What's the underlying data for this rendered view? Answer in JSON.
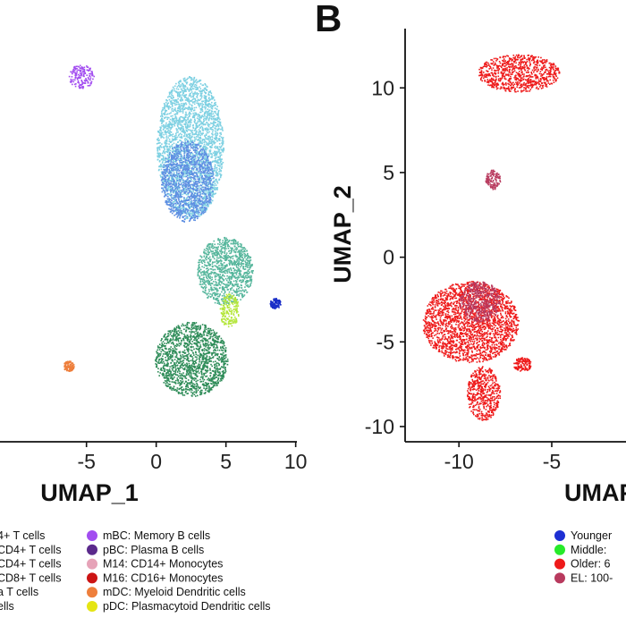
{
  "chart_data": [
    {
      "type": "scatter",
      "panel": "",
      "xlabel": "UMAP_1",
      "ylabel": "",
      "xticks": [
        "-5",
        "0",
        "5",
        "10"
      ],
      "xlim": [
        -11.2,
        10.6
      ],
      "ylim": [
        -10.9,
        13.5
      ],
      "grid": false,
      "legend_position": "bottom",
      "series": [
        {
          "name": "mBC: Memory B cells",
          "color": "#a24df0"
        },
        {
          "name": "pBC: Plasma B cells",
          "color": "#5b2a8c"
        },
        {
          "name": "M14: CD14+ Monocytes",
          "color": "#e6a3b8"
        },
        {
          "name": "M16: CD16+ Monocytes",
          "color": "#cc1414"
        },
        {
          "name": "mDC: Myeloid Dendritic cells",
          "color": "#ee7f3c"
        },
        {
          "name": "pDC: Plasmacytoid Dendritic cells",
          "color": "#e5e513"
        }
      ],
      "partial_legend": [
        "4+ T cells",
        "CD4+ T cells",
        "CD4+ T cells",
        "CD8+ T cells",
        "a T cells",
        "ells"
      ],
      "clusters": [
        {
          "color": "#a24df0",
          "x": -5.4,
          "y": 10.7,
          "rx": 0.9,
          "ry": 0.7
        },
        {
          "color": "#7dd0e2",
          "x": 2.4,
          "y": 6.5,
          "rx": 2.4,
          "ry": 4.2
        },
        {
          "color": "#5f8fe2",
          "x": 2.2,
          "y": 4.5,
          "rx": 1.9,
          "ry": 2.4
        },
        {
          "color": "#56b69c",
          "x": 4.9,
          "y": -0.8,
          "rx": 2.0,
          "ry": 2.0
        },
        {
          "color": "#1a2ec8",
          "x": 8.5,
          "y": -2.7,
          "rx": 0.4,
          "ry": 0.3
        },
        {
          "color": "#b4e63a",
          "x": 5.2,
          "y": -3.1,
          "rx": 0.7,
          "ry": 1.0
        },
        {
          "color": "#2e8c58",
          "x": 2.5,
          "y": -6.0,
          "rx": 2.6,
          "ry": 2.2
        },
        {
          "color": "#ee7f3c",
          "x": -6.3,
          "y": -6.4,
          "rx": 0.4,
          "ry": 0.3
        }
      ]
    },
    {
      "type": "scatter",
      "panel": "B",
      "xlabel": "UMAP_1",
      "ylabel": "UMAP_2",
      "xticks": [
        "-10",
        "-5"
      ],
      "yticks": [
        "10",
        "5",
        "0",
        "-5",
        "-10"
      ],
      "xlim": [
        -12.9,
        -1.0
      ],
      "ylim": [
        -10.9,
        13.5
      ],
      "grid": false,
      "legend_position": "bottom",
      "series": [
        {
          "name": "Younger",
          "label": "Younger",
          "color": "#1d2fd3"
        },
        {
          "name": "Middle",
          "label": "Middle:",
          "color": "#27ea2a"
        },
        {
          "name": "Older",
          "label": "Older: 6",
          "color": "#ee1a1a"
        },
        {
          "name": "EL",
          "label": "EL: 100-",
          "color": "#b83a5e"
        }
      ],
      "clusters": [
        {
          "color": "#ee1a1a",
          "x": -6.8,
          "y": 10.9,
          "rx": 2.2,
          "ry": 1.1
        },
        {
          "color": "#b83a5e",
          "x": -8.2,
          "y": 4.6,
          "rx": 0.4,
          "ry": 0.6
        },
        {
          "color": "#ee1a1a",
          "x": -9.4,
          "y": -3.8,
          "rx": 2.6,
          "ry": 2.4
        },
        {
          "color": "#b83a5e",
          "x": -8.9,
          "y": -2.6,
          "rx": 1.1,
          "ry": 1.2
        },
        {
          "color": "#ee1a1a",
          "x": -8.7,
          "y": -8.0,
          "rx": 0.9,
          "ry": 1.6
        },
        {
          "color": "#ee1a1a",
          "x": -6.6,
          "y": -6.3,
          "rx": 0.5,
          "ry": 0.4
        }
      ]
    }
  ]
}
